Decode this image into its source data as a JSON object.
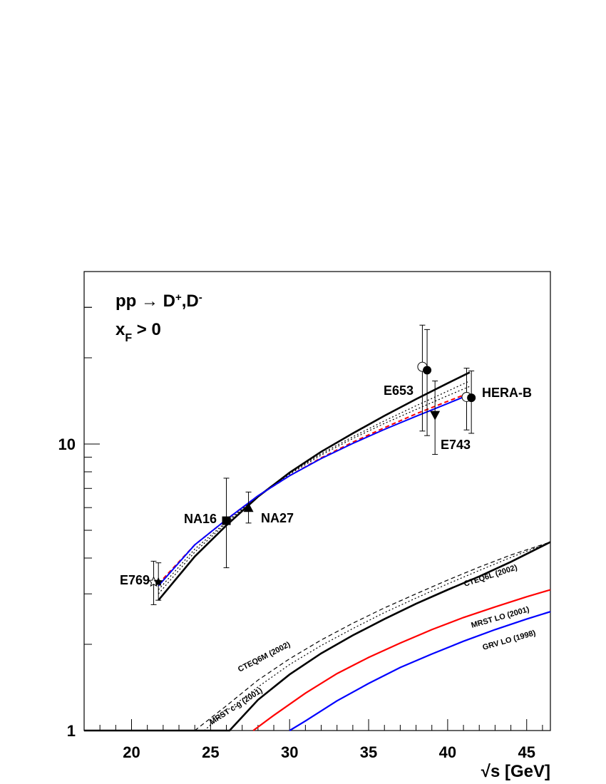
{
  "chart_data": {
    "type": "line",
    "title_main": "pp → D",
    "title_sup": "+",
    "title_mid": ",D",
    "title_sup2": "-",
    "cut_x": "x",
    "cut_sub": "F",
    "cut_rest": " > 0",
    "xlabel": "√s [GeV]",
    "ylabel": "",
    "xlim": [
      17,
      46.5
    ],
    "ylim": [
      1,
      40
    ],
    "y_scale": "log",
    "x_ticks": [
      20,
      25,
      30,
      35,
      40,
      45
    ],
    "x_tick_labels": [
      "20",
      "25",
      "30",
      "35",
      "40",
      "45"
    ],
    "y_tick_labels": [
      {
        "value": 1,
        "label": "1"
      },
      {
        "value": 10,
        "label": "10"
      }
    ],
    "grid": false,
    "colors": {
      "black": "#000000",
      "red": "#ff0000",
      "blue": "#0000ff"
    },
    "experiments": [
      {
        "name": "E769",
        "label": "E769",
        "points": [
          {
            "x": 21.4,
            "y": 3.3,
            "ylo": 2.75,
            "yhi": 3.9,
            "marker": "open-star"
          },
          {
            "x": 21.7,
            "y": 3.3,
            "ylo": 2.85,
            "yhi": 3.85,
            "marker": "star"
          }
        ]
      },
      {
        "name": "NA16",
        "label": "NA16",
        "points": [
          {
            "x": 26.0,
            "y": 5.4,
            "ylo": 3.7,
            "yhi": 7.6,
            "marker": "square"
          }
        ]
      },
      {
        "name": "NA27",
        "label": "NA27",
        "points": [
          {
            "x": 27.4,
            "y": 6.0,
            "ylo": 5.3,
            "yhi": 6.8,
            "marker": "triangle-up"
          }
        ]
      },
      {
        "name": "E653",
        "label": "E653",
        "points": [
          {
            "x": 38.4,
            "y": 18.6,
            "ylo": 11.1,
            "yhi": 26.0,
            "marker": "open-circle"
          },
          {
            "x": 38.7,
            "y": 18.1,
            "ylo": 10.7,
            "yhi": 25.1,
            "marker": "circle"
          }
        ]
      },
      {
        "name": "E743",
        "label": "E743",
        "points": [
          {
            "x": 39.2,
            "y": 12.6,
            "ylo": 9.2,
            "yhi": 16.6,
            "marker": "triangle-down"
          }
        ]
      },
      {
        "name": "HERA-B",
        "label": "HERA-B",
        "points": [
          {
            "x": 41.2,
            "y": 14.6,
            "ylo": 11.2,
            "yhi": 18.4,
            "marker": "open-circle"
          },
          {
            "x": 41.5,
            "y": 14.5,
            "ylo": 10.9,
            "yhi": 18.0,
            "marker": "circle"
          }
        ]
      }
    ],
    "upper_curves": [
      {
        "name": "CTEQ6L (2002)",
        "color": "#000000",
        "dash": "solid",
        "width": 2.6,
        "x": [
          21.7,
          24,
          26,
          28,
          30,
          32,
          34,
          36,
          38,
          40,
          41.4
        ],
        "y": [
          2.85,
          4.05,
          5.2,
          6.55,
          7.95,
          9.4,
          10.9,
          12.55,
          14.35,
          16.3,
          17.8
        ]
      },
      {
        "name": "MRST c-g (2001)",
        "color": "#000000",
        "dash": "dotted",
        "width": 1.2,
        "x": [
          21.7,
          24,
          26,
          28,
          30,
          32,
          34,
          36,
          38,
          40,
          41.4
        ],
        "y": [
          3.0,
          4.2,
          5.3,
          6.6,
          7.9,
          9.25,
          10.6,
          12.05,
          13.6,
          15.3,
          16.6
        ]
      },
      {
        "name": "CTEQ6M (2002)",
        "color": "#000000",
        "dash": "dotted",
        "width": 1.2,
        "x": [
          21.7,
          24,
          26,
          28,
          30,
          32,
          34,
          36,
          38,
          40,
          41.4
        ],
        "y": [
          3.1,
          4.3,
          5.35,
          6.6,
          7.85,
          9.15,
          10.45,
          11.8,
          13.2,
          14.75,
          15.9
        ]
      },
      {
        "name": "MRST LO (2001)",
        "color": "#ff0000",
        "dash": "dashed",
        "width": 2.0,
        "x": [
          21.7,
          24,
          26,
          28,
          30,
          32,
          34,
          36,
          38,
          40,
          41.4
        ],
        "y": [
          3.25,
          4.45,
          5.45,
          6.6,
          7.75,
          8.95,
          10.15,
          11.4,
          12.75,
          14.1,
          15.1
        ]
      },
      {
        "name": "GRV LO (1998)",
        "color": "#0000ff",
        "dash": "solid",
        "width": 2.0,
        "x": [
          21.7,
          24,
          26,
          28,
          30,
          32,
          34,
          36,
          38,
          40,
          41.4
        ],
        "y": [
          3.2,
          4.45,
          5.45,
          6.6,
          7.75,
          8.9,
          10.05,
          11.25,
          12.5,
          13.85,
          14.9
        ]
      }
    ],
    "lower_curves": [
      {
        "name": "CTEQ6L (2002)",
        "label": "CTEQ6L (2002)",
        "color": "#000000",
        "dash": "solid",
        "width": 2.6,
        "x": [
          17,
          26.2,
          28,
          30,
          32,
          34,
          36,
          38,
          40,
          42,
          44,
          46.5
        ],
        "y": [
          1.0,
          1.0,
          1.28,
          1.57,
          1.86,
          2.15,
          2.45,
          2.77,
          3.1,
          3.45,
          3.88,
          4.55
        ]
      },
      {
        "name": "MRST c-g (2001)",
        "label": "MRST c-g (2001)",
        "color": "#000000",
        "dash": "dotted",
        "width": 1.2,
        "x": [
          24.6,
          26,
          28,
          30,
          32,
          34,
          36,
          38,
          40,
          42,
          44,
          46.5
        ],
        "y": [
          1.0,
          1.17,
          1.42,
          1.7,
          1.98,
          2.27,
          2.58,
          2.9,
          3.25,
          3.62,
          4.02,
          4.55
        ]
      },
      {
        "name": "CTEQ6M (2002)",
        "label": "CTEQ6M (2002)",
        "color": "#000000",
        "dash": "dashed",
        "width": 1.2,
        "x": [
          24.0,
          26,
          28,
          30,
          32,
          34,
          36,
          38,
          40,
          42,
          44,
          46.5
        ],
        "y": [
          1.0,
          1.22,
          1.5,
          1.78,
          2.07,
          2.37,
          2.68,
          3.0,
          3.35,
          3.72,
          4.1,
          4.55
        ]
      },
      {
        "name": "MRST LO (2001)",
        "label": "MRST LO (2001)",
        "color": "#ff0000",
        "dash": "solid",
        "width": 2.2,
        "x": [
          27.7,
          29,
          31,
          33,
          35,
          37,
          39,
          41,
          43,
          45,
          46.5
        ],
        "y": [
          1.0,
          1.13,
          1.35,
          1.58,
          1.8,
          2.02,
          2.25,
          2.48,
          2.7,
          2.93,
          3.1
        ]
      },
      {
        "name": "GRV LO (1998)",
        "label": "GRV LO (1998)",
        "color": "#0000ff",
        "dash": "solid",
        "width": 2.2,
        "x": [
          30.0,
          31,
          33,
          35,
          37,
          39,
          41,
          43,
          45,
          46.5
        ],
        "y": [
          1.0,
          1.08,
          1.27,
          1.46,
          1.66,
          1.85,
          2.05,
          2.25,
          2.45,
          2.6
        ]
      }
    ]
  }
}
